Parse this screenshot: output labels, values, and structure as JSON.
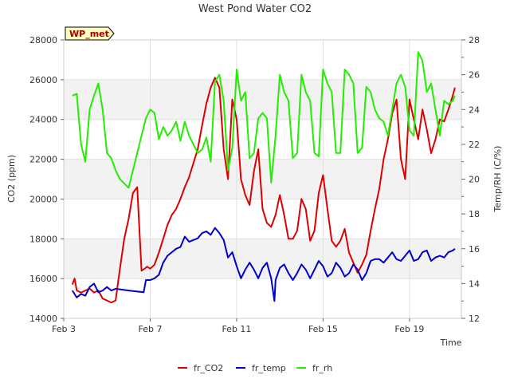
{
  "chart_data": {
    "type": "line",
    "title": "West Pond Water CO2",
    "xlabel": "Time",
    "ylabel": "CO2 (ppm)",
    "y2label": "Temp/RH (C/%)",
    "badge": "WP_met",
    "xlim": [
      3,
      21.4
    ],
    "ylim": [
      14000,
      28000
    ],
    "y2lim": [
      12,
      28
    ],
    "x_ticks": [
      {
        "value": 3,
        "label": "Feb 3"
      },
      {
        "value": 7,
        "label": "Feb 7"
      },
      {
        "value": 11,
        "label": "Feb 11"
      },
      {
        "value": 15,
        "label": "Feb 15"
      },
      {
        "value": 19,
        "label": "Feb 19"
      }
    ],
    "y_ticks": [
      {
        "value": 14000,
        "label": "14000"
      },
      {
        "value": 16000,
        "label": "16000"
      },
      {
        "value": 18000,
        "label": "18000"
      },
      {
        "value": 20000,
        "label": "20000"
      },
      {
        "value": 22000,
        "label": "22000"
      },
      {
        "value": 24000,
        "label": "24000"
      },
      {
        "value": 26000,
        "label": "26000"
      },
      {
        "value": 28000,
        "label": "28000"
      }
    ],
    "y2_ticks": [
      {
        "value": 12,
        "label": "12"
      },
      {
        "value": 14,
        "label": "14"
      },
      {
        "value": 16,
        "label": "16"
      },
      {
        "value": 18,
        "label": "18"
      },
      {
        "value": 20,
        "label": "20"
      },
      {
        "value": 22,
        "label": "22"
      },
      {
        "value": 24,
        "label": "24"
      },
      {
        "value": 26,
        "label": "26"
      },
      {
        "value": 28,
        "label": "28"
      }
    ],
    "grid": true,
    "legend_position": "bottom-center",
    "series": [
      {
        "name": "fr_CO2",
        "axis": "left",
        "color": "#dd0000",
        "x": [
          3.4,
          3.5,
          3.6,
          3.8,
          4.0,
          4.2,
          4.4,
          4.6,
          4.8,
          5.0,
          5.2,
          5.4,
          5.6,
          5.8,
          6.0,
          6.2,
          6.4,
          6.6,
          6.75,
          6.85,
          7.0,
          7.2,
          7.4,
          7.6,
          7.8,
          8.0,
          8.2,
          8.4,
          8.6,
          8.8,
          9.0,
          9.2,
          9.4,
          9.6,
          9.8,
          10.0,
          10.2,
          10.4,
          10.6,
          10.8,
          11.0,
          11.2,
          11.4,
          11.6,
          11.8,
          12.0,
          12.2,
          12.4,
          12.6,
          12.8,
          13.0,
          13.2,
          13.4,
          13.6,
          13.8,
          14.0,
          14.2,
          14.4,
          14.6,
          14.8,
          15.0,
          15.2,
          15.4,
          15.6,
          15.8,
          16.0,
          16.2,
          16.4,
          16.6,
          16.8,
          17.0,
          17.2,
          17.4,
          17.6,
          17.8,
          18.0,
          18.2,
          18.4,
          18.6,
          18.8,
          19.0,
          19.2,
          19.4,
          19.6,
          19.8,
          20.0,
          20.2,
          20.4,
          20.6,
          20.8,
          21.0,
          21.1
        ],
        "values": [
          15700,
          16000,
          15400,
          15300,
          15400,
          15500,
          15300,
          15400,
          15000,
          14900,
          14800,
          14900,
          16500,
          18000,
          19000,
          20300,
          20600,
          16400,
          16500,
          16600,
          16500,
          16700,
          17300,
          18000,
          18700,
          19200,
          19500,
          20000,
          20600,
          21100,
          21800,
          22500,
          23700,
          24800,
          25600,
          26100,
          25600,
          22500,
          21000,
          25000,
          24000,
          21000,
          20200,
          19700,
          21400,
          22500,
          19500,
          18800,
          18600,
          19200,
          20200,
          19200,
          18000,
          18000,
          18400,
          20000,
          19500,
          17900,
          18400,
          20300,
          21200,
          19500,
          17900,
          17600,
          17900,
          18500,
          17300,
          16800,
          16300,
          16700,
          17200,
          18400,
          19500,
          20500,
          22000,
          23000,
          24300,
          25000,
          22000,
          21000,
          25000,
          24000,
          23000,
          24500,
          23500,
          22300,
          23000,
          24000,
          23900,
          24500,
          25200,
          25600
        ]
      },
      {
        "name": "fr_temp",
        "axis": "right",
        "color": "#0000cc",
        "x": [
          3.4,
          3.6,
          3.8,
          4.0,
          4.2,
          4.4,
          4.6,
          4.8,
          5.0,
          5.2,
          5.4,
          6.0,
          6.7,
          6.8,
          7.0,
          7.2,
          7.4,
          7.6,
          7.8,
          8.0,
          8.2,
          8.4,
          8.6,
          8.8,
          9.0,
          9.2,
          9.4,
          9.6,
          9.8,
          10.0,
          10.2,
          10.4,
          10.6,
          10.8,
          11.0,
          11.2,
          11.4,
          11.6,
          11.8,
          12.0,
          12.2,
          12.4,
          12.6,
          12.75,
          12.8,
          13.0,
          13.2,
          13.4,
          13.6,
          13.8,
          14.0,
          14.2,
          14.4,
          14.6,
          14.8,
          15.0,
          15.2,
          15.4,
          15.6,
          15.8,
          16.0,
          16.2,
          16.4,
          16.6,
          16.8,
          17.0,
          17.2,
          17.4,
          17.6,
          17.8,
          18.0,
          18.2,
          18.4,
          18.6,
          18.8,
          19.0,
          19.2,
          19.4,
          19.6,
          19.8,
          20.0,
          20.2,
          20.4,
          20.6,
          20.8,
          21.0,
          21.1
        ],
        "values": [
          13.6,
          13.2,
          13.4,
          13.3,
          13.8,
          14.0,
          13.5,
          13.6,
          13.8,
          13.6,
          13.7,
          13.6,
          13.5,
          14.2,
          14.2,
          14.3,
          14.5,
          15.2,
          15.6,
          15.8,
          16.0,
          16.1,
          16.7,
          16.4,
          16.5,
          16.6,
          16.9,
          17.0,
          16.8,
          17.2,
          16.9,
          16.5,
          15.5,
          15.8,
          15.0,
          14.3,
          14.8,
          15.2,
          14.8,
          14.3,
          14.9,
          15.2,
          14.3,
          13.0,
          14.2,
          14.9,
          15.1,
          14.6,
          14.2,
          14.6,
          15.1,
          14.8,
          14.3,
          14.8,
          15.3,
          15.0,
          14.4,
          14.6,
          15.2,
          14.9,
          14.4,
          14.6,
          15.1,
          14.8,
          14.2,
          14.6,
          15.3,
          15.4,
          15.4,
          15.2,
          15.5,
          15.8,
          15.4,
          15.3,
          15.6,
          15.9,
          15.3,
          15.4,
          15.8,
          15.9,
          15.3,
          15.5,
          15.6,
          15.5,
          15.8,
          15.9,
          16.0
        ]
      },
      {
        "name": "fr_rh",
        "axis": "right",
        "color": "#22ee00",
        "x": [
          3.4,
          3.6,
          3.8,
          4.0,
          4.2,
          4.4,
          4.6,
          4.8,
          5.0,
          5.2,
          5.4,
          5.6,
          6.0,
          6.6,
          6.8,
          7.0,
          7.2,
          7.4,
          7.6,
          7.8,
          8.0,
          8.2,
          8.4,
          8.6,
          8.8,
          9.0,
          9.2,
          9.4,
          9.6,
          9.8,
          10.0,
          10.2,
          10.4,
          10.6,
          10.8,
          11.0,
          11.2,
          11.4,
          11.6,
          11.8,
          12.0,
          12.2,
          12.4,
          12.6,
          12.8,
          13.0,
          13.2,
          13.4,
          13.6,
          13.8,
          14.0,
          14.2,
          14.4,
          14.6,
          14.8,
          15.0,
          15.2,
          15.4,
          15.6,
          15.8,
          16.0,
          16.2,
          16.4,
          16.6,
          16.8,
          17.0,
          17.2,
          17.4,
          17.6,
          17.8,
          18.0,
          18.2,
          18.4,
          18.6,
          18.8,
          19.0,
          19.2,
          19.4,
          19.6,
          19.8,
          20.0,
          20.2,
          20.4,
          20.6,
          20.8,
          21.0,
          21.1
        ],
        "values": [
          24.8,
          24.9,
          22.0,
          21.0,
          24.0,
          24.8,
          25.5,
          24.0,
          21.5,
          21.2,
          20.5,
          20.0,
          19.5,
          22.5,
          23.5,
          24.0,
          23.8,
          22.3,
          23.0,
          22.5,
          22.8,
          23.3,
          22.2,
          23.3,
          22.5,
          22.0,
          21.5,
          21.7,
          22.4,
          21.0,
          25.6,
          26.0,
          24.5,
          20.5,
          21.8,
          26.3,
          24.5,
          25.0,
          21.2,
          21.5,
          23.5,
          23.8,
          23.5,
          19.8,
          22.5,
          26.0,
          25.0,
          24.5,
          21.2,
          21.5,
          26.0,
          25.0,
          24.5,
          21.5,
          21.3,
          26.3,
          25.5,
          25.0,
          21.5,
          21.5,
          26.3,
          26.0,
          25.5,
          21.5,
          21.8,
          25.3,
          25.0,
          24.0,
          23.5,
          23.3,
          22.5,
          24.0,
          25.5,
          26.0,
          25.3,
          22.8,
          22.5,
          27.3,
          26.8,
          25.0,
          25.5,
          24.0,
          22.5,
          24.5,
          24.3,
          24.5,
          24.8
        ]
      }
    ]
  }
}
